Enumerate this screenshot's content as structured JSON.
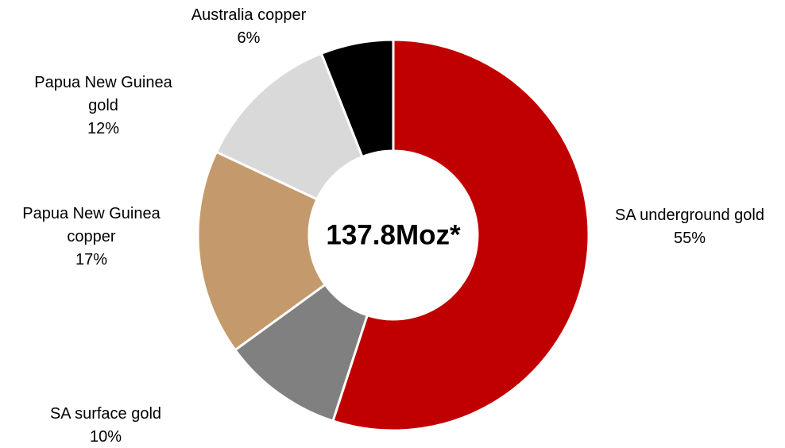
{
  "chart_data": {
    "type": "donut",
    "center_label": "137.8Moz*",
    "categories": [
      "SA underground gold",
      "SA surface gold",
      "Papua New Guinea copper",
      "Papua New Guinea gold",
      "Australia copper"
    ],
    "values": [
      55,
      10,
      17,
      12,
      6
    ],
    "value_labels": [
      "55%",
      "10%",
      "17%",
      "12%",
      "6%"
    ],
    "colors": [
      "#c00000",
      "#808080",
      "#c49a6c",
      "#d9d9d9",
      "#000000"
    ]
  }
}
